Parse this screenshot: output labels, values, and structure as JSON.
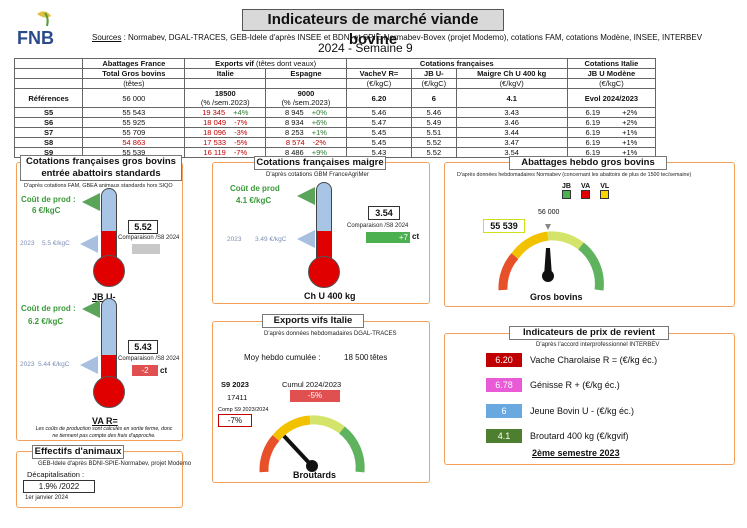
{
  "header": {
    "logo_text": "FNB",
    "title": "Indicateurs de marché viande bovine",
    "sources_label": "Sources",
    "sources_text": " : Normabev, DGAL-TRACES, GEB-Idele d'après INSEE et BDNI et SPIE-Normabev-Bovex (projet Modemo), cotations FAM, cotations Modène, INSEE, INTERBEV",
    "week": "2024 - Semaine 9"
  },
  "table": {
    "groups": [
      "Abattages France",
      "Exports vif",
      "(têtes dont veaux)",
      "Cotations françaises",
      "Cotations Italie"
    ],
    "cols": [
      "Total Gros bovins",
      "Italie",
      "Espagne",
      "VacheV R=",
      "JB U-",
      "Maigre Ch U 400 kg",
      "JB U Modène"
    ],
    "units": [
      "(têtes)",
      "",
      "",
      "(€/kgC)",
      "(€/kgC)",
      "(€/kgV)",
      "(€/kgC)"
    ],
    "ref_label": "Références",
    "ref": [
      "56 000",
      "18500",
      "(% /sem.2023)",
      "9000",
      "(% /sem.2023)",
      "6.20",
      "6",
      "4.1",
      "Evol 2024/2023"
    ],
    "rows": [
      {
        "w": "S5",
        "ab": "55 543",
        "it": "19 345",
        "itp": "+4%",
        "es": "8 945",
        "esp": "+0%",
        "v": "5.46",
        "jb": "5.46",
        "m": "3.43",
        "mod": "6.19",
        "modp": "+2%"
      },
      {
        "w": "S6",
        "ab": "55 925",
        "it": "18 049",
        "itp": "-7%",
        "es": "8 934",
        "esp": "+6%",
        "v": "5.47",
        "jb": "5.49",
        "m": "3.46",
        "mod": "6.19",
        "modp": "+2%"
      },
      {
        "w": "S7",
        "ab": "55 709",
        "it": "18 096",
        "itp": "-3%",
        "es": "8 253",
        "esp": "+1%",
        "v": "5.45",
        "jb": "5.51",
        "m": "3.44",
        "mod": "6.19",
        "modp": "+1%"
      },
      {
        "w": "S8",
        "ab": "54 863",
        "it": "17 533",
        "itp": "-5%",
        "es": "8 574",
        "esp": "-2%",
        "v": "5.45",
        "jb": "5.52",
        "m": "3.47",
        "mod": "6.19",
        "modp": "+1%"
      },
      {
        "w": "S9",
        "ab": "55 539",
        "it": "16 119",
        "itp": "-7%",
        "es": "8 486",
        "esp": "+9%",
        "v": "5.43",
        "jb": "5.52",
        "m": "3.54",
        "mod": "6.19",
        "modp": "+1%"
      }
    ]
  },
  "gros": {
    "title": "Cotations françaises gros bovins entrée abattoirs standards",
    "note": "D'après cotations FAM, GBEA animaux standards hors SIQO",
    "jb_cout": "Coût de prod :",
    "jb_cout_val": "6 €/kgC",
    "jb_2023": "2023",
    "jb_2023_val": "5.5 €/kgC",
    "jb_val": "5.52",
    "jb_comp": "Comparaison /S8 2024",
    "jb_name": "JB U-",
    "va_cout": "Coût de prod :",
    "va_cout_val": "6.2 €/kgC",
    "va_2023": "2023",
    "va_2023_val": "5.44 €/kgC",
    "va_val": "5.43",
    "va_comp": "Comparaison /S8 2024",
    "va_delta": "-2",
    "va_unit": "ct",
    "va_name": "VA R=",
    "footnote": "Les coûts de production sont calculés en sortie ferme, donc ne tiennent pas compte des frais d'approche."
  },
  "maigre": {
    "title": "Cotations françaises maigre",
    "note": "D'après cotations GBM FranceAgriMer",
    "cout": "Coût de prod",
    "cout_val": "4.1 €/kgC",
    "y2023": "2023",
    "y2023_val": "3.49 €/kgC",
    "val": "3.54",
    "comp": "Comparaison /S8 2024",
    "delta": "+7",
    "unit": "ct",
    "name": "Ch U 400 kg"
  },
  "abattages": {
    "title": "Abattages hebdo gros bovins",
    "note": "D'après données hebdomadaires Normabev (concernant les abattoirs de plus de 1500 tec/semaine)",
    "legend": [
      "JB",
      "VA",
      "VL"
    ],
    "ref": "56 000",
    "val": "55 539",
    "name": "Gros bovins"
  },
  "exports": {
    "title": "Exports vifs  Italie",
    "note": "D'après données hebdomadaires DGAL-TRACES",
    "moy_label": "Moy hebdo cumulée :",
    "moy_val": "18 500",
    "moy_unit": "têtes",
    "s9_label": "S9 2023",
    "s9_val": "17411",
    "cumul_label": "Cumul 2024/2023",
    "cumul_val": "-5%",
    "comp_label": "Comp S9 2023/2024",
    "comp_val": "-7%",
    "name": "Broutards"
  },
  "effectifs": {
    "title": "Effectifs d'animaux",
    "note": "GEB-Idele d'après BDNI-SPIE-Normabev, projet Modemo",
    "decap": "Décapitalisation :",
    "val": "1.9% /2022",
    "date": "1er janvier 2024"
  },
  "prix": {
    "title": "Indicateurs de prix de revient",
    "note": "D'après l'accord interprofessionnel INTERBEV",
    "items": [
      {
        "val": "6.20",
        "label": "Vache Charolaise R = (€/kg éc.)",
        "color": "#c00000"
      },
      {
        "val": "6.78",
        "label": "Génisse R + (€/kg éc.)",
        "color": "#e85ad6"
      },
      {
        "val": "6",
        "label": "Jeune Bovin U - (€/kg éc.)",
        "color": "#6aa8e0"
      },
      {
        "val": "4.1",
        "label": "Broutard 400 kg (€/kgvif)",
        "color": "#4e7f2e"
      }
    ],
    "semestre": "2ème semestre 2023"
  }
}
